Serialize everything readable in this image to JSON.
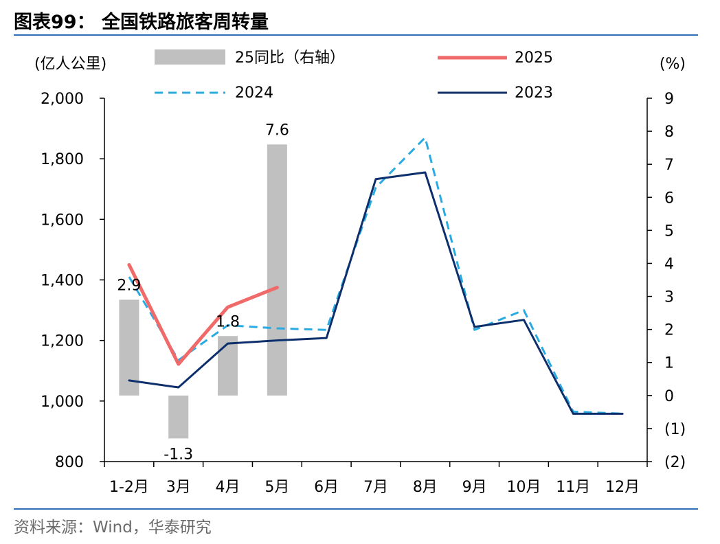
{
  "figure": {
    "title": "图表99：  全国铁路旅客周转量",
    "source": "资料来源：Wind，华泰研究"
  },
  "colors": {
    "bar": "#c0c0c0",
    "s2025": "#f16a6a",
    "s2024": "#29abe2",
    "s2023": "#0d2f6b",
    "rule": "#2e6fb5"
  },
  "chart_data": {
    "type": "bar+line",
    "categories": [
      "1-2月",
      "3月",
      "4月",
      "5月",
      "6月",
      "7月",
      "8月",
      "9月",
      "10月",
      "11月",
      "12月"
    ],
    "left_axis": {
      "unit_label": "(亿人公里)",
      "ylim": [
        800,
        2000
      ],
      "ticks": [
        800,
        1000,
        1200,
        1400,
        1600,
        1800,
        2000
      ],
      "tick_labels": [
        "800",
        "1,000",
        "1,200",
        "1,400",
        "1,600",
        "1,800",
        "2,000"
      ]
    },
    "right_axis": {
      "unit_label": "(%)",
      "ylim": [
        -2,
        9
      ],
      "ticks": [
        -2,
        -1,
        0,
        1,
        2,
        3,
        4,
        5,
        6,
        7,
        8,
        9
      ],
      "tick_labels": [
        "(2)",
        "(1)",
        "0",
        "1",
        "2",
        "3",
        "4",
        "5",
        "6",
        "7",
        "8",
        "9"
      ]
    },
    "bar_series": {
      "name": "25同比（右轴）",
      "axis": "right",
      "values": [
        2.9,
        -1.3,
        1.8,
        7.6
      ],
      "labels": [
        "2.9",
        "-1.3",
        "1.8",
        "7.6"
      ]
    },
    "line_series": [
      {
        "name": "2025",
        "axis": "left",
        "style": "solid-thick",
        "color_key": "s2025",
        "values": [
          1450,
          1122,
          1310,
          1375
        ]
      },
      {
        "name": "2024",
        "axis": "left",
        "style": "dashed",
        "color_key": "s2024",
        "values": [
          1410,
          1135,
          1250,
          1240,
          1235,
          1705,
          1870,
          1235,
          1300,
          965,
          958
        ]
      },
      {
        "name": "2023",
        "axis": "left",
        "style": "solid",
        "color_key": "s2023",
        "values": [
          1068,
          1045,
          1190,
          1200,
          1208,
          1733,
          1755,
          1245,
          1268,
          958,
          958
        ]
      }
    ],
    "legend_placement": "top",
    "grid": false
  }
}
